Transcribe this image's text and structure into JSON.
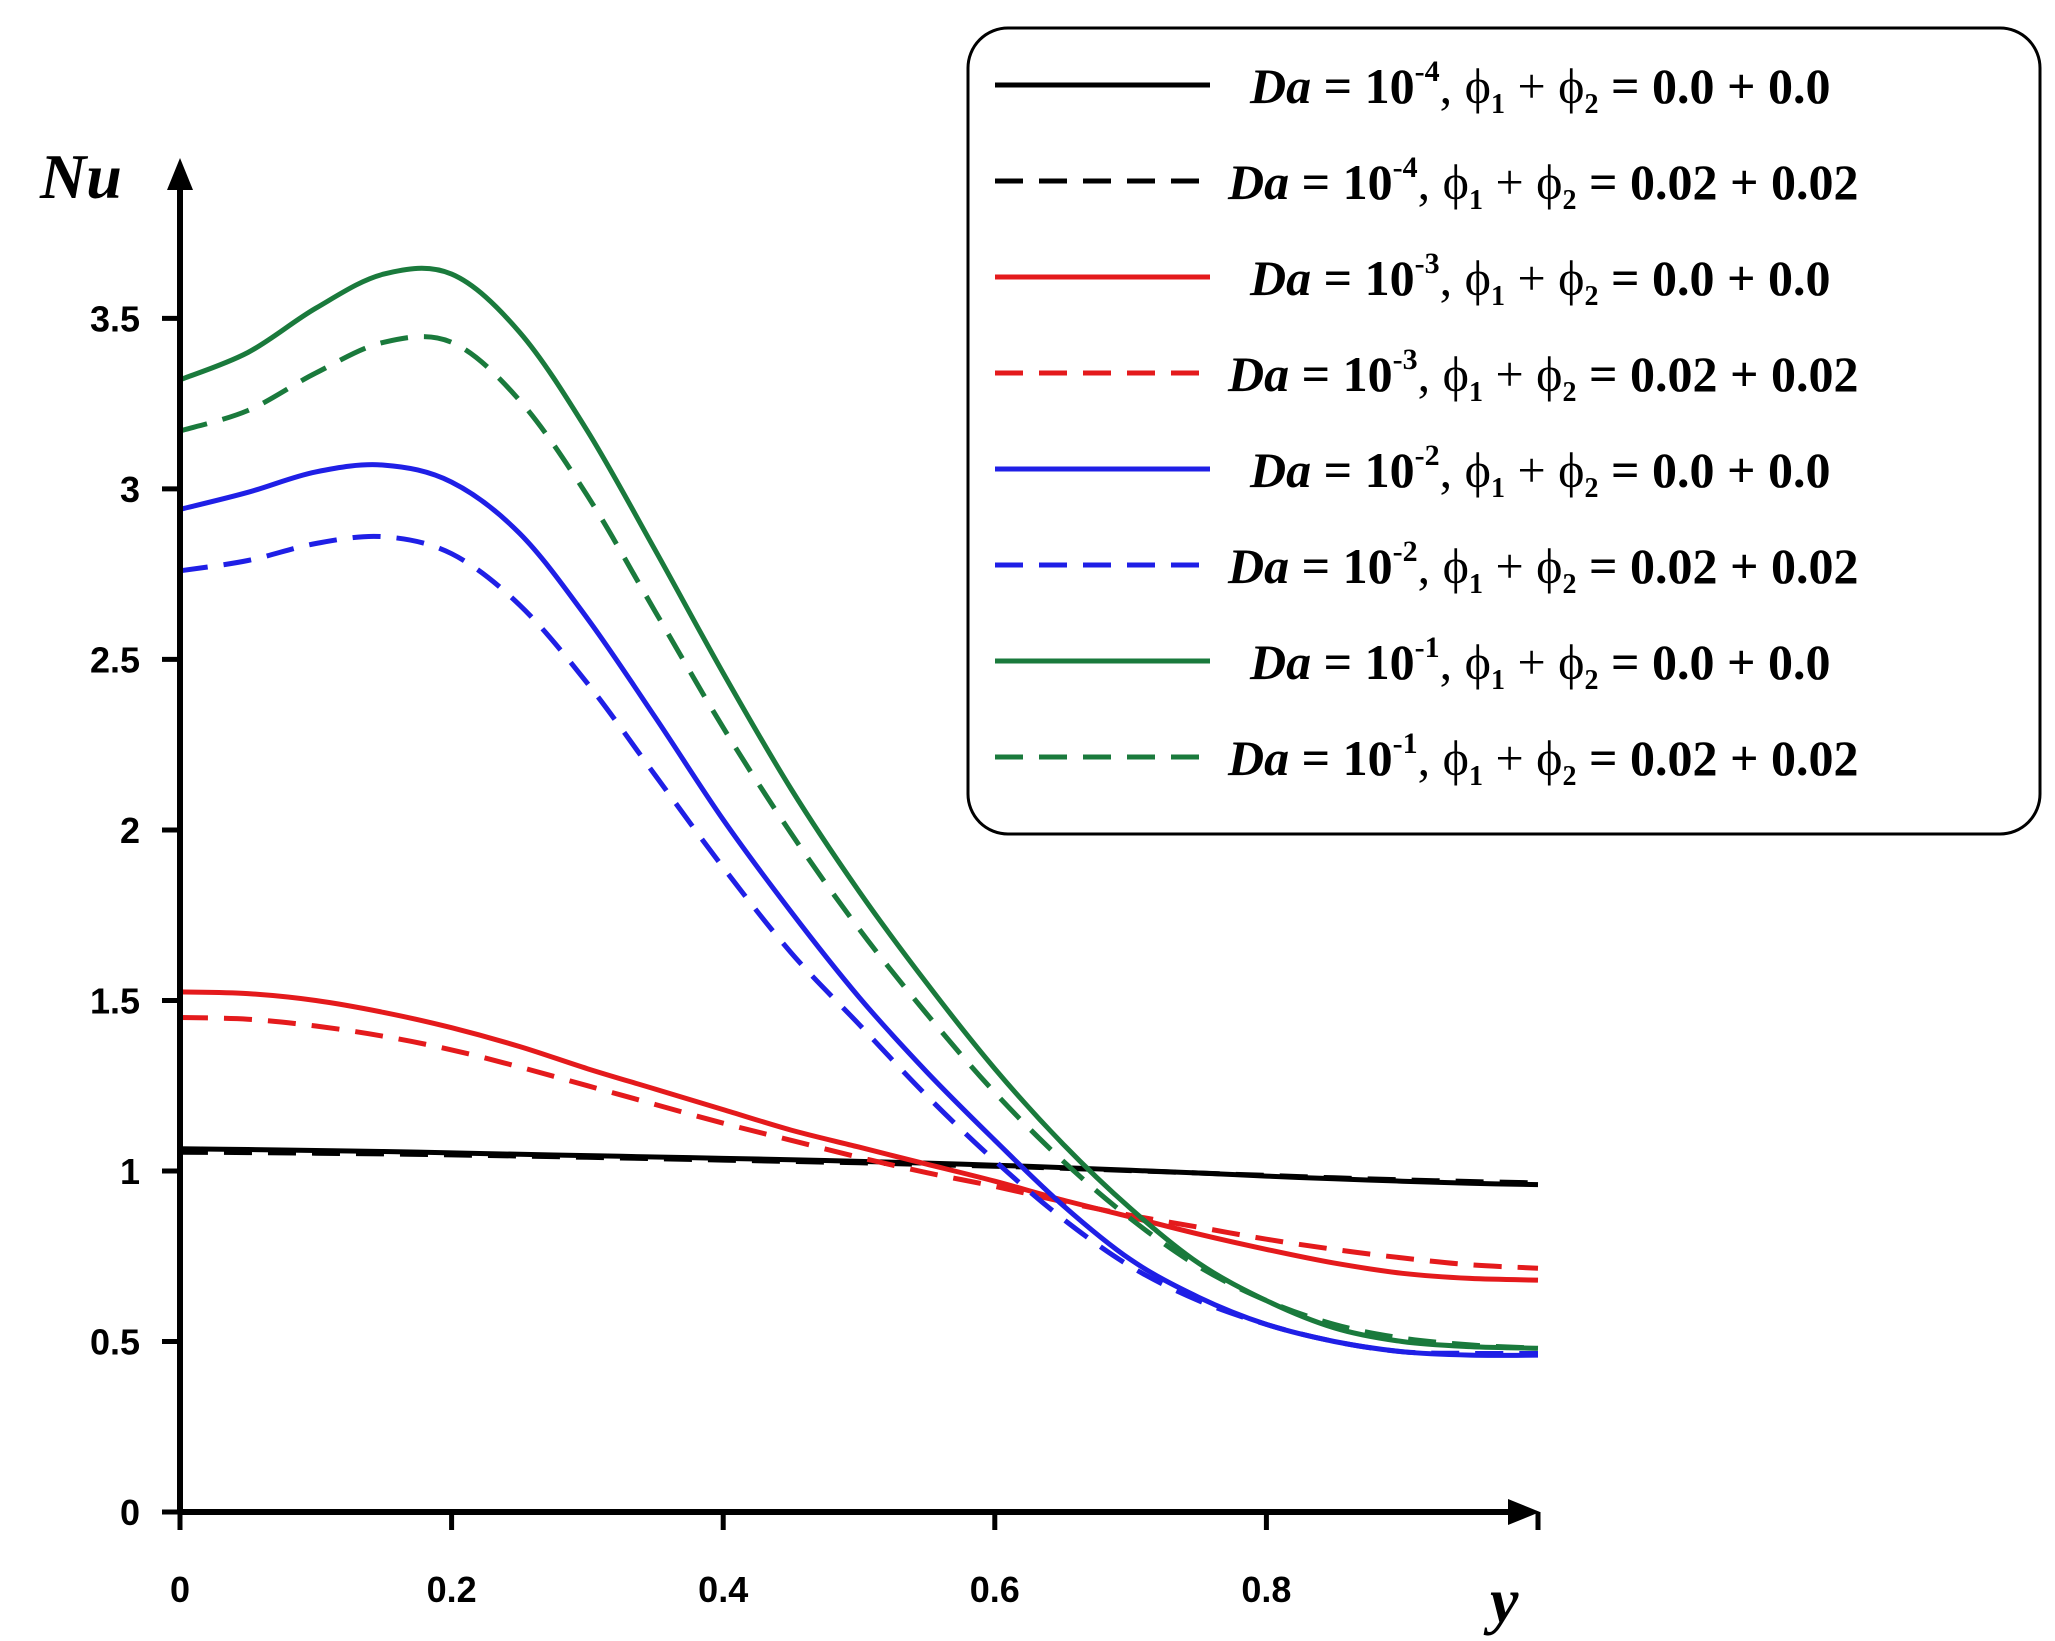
{
  "chart_data": {
    "type": "line",
    "title": "",
    "xlabel": "y",
    "ylabel": "Nu",
    "xlim": [
      0,
      1
    ],
    "ylim": [
      0,
      3.9
    ],
    "xticks": [
      0,
      0.2,
      0.4,
      0.6,
      0.8
    ],
    "xtick_labels": [
      "0",
      "0.2",
      "0.4",
      "0.6",
      "0.8"
    ],
    "yticks": [
      0,
      0.5,
      1,
      1.5,
      2,
      2.5,
      3,
      3.5
    ],
    "ytick_labels": [
      "0",
      "0.5",
      "1",
      "1.5",
      "2",
      "2.5",
      "3",
      "3.5"
    ],
    "grid": false,
    "legend_position": "top-right",
    "x": [
      0,
      0.05,
      0.1,
      0.15,
      0.2,
      0.25,
      0.3,
      0.35,
      0.4,
      0.45,
      0.5,
      0.55,
      0.6,
      0.65,
      0.7,
      0.75,
      0.8,
      0.85,
      0.9,
      0.95,
      1.0
    ],
    "series": [
      {
        "name": "Da = 10-4, φ1 + φ2 = 0.0 + 0.0",
        "da": "-4",
        "phi": "0.0 + 0.0",
        "color": "#000000",
        "dashed": false,
        "values": [
          1.065,
          1.063,
          1.06,
          1.057,
          1.053,
          1.049,
          1.045,
          1.041,
          1.037,
          1.033,
          1.028,
          1.023,
          1.017,
          1.01,
          1.002,
          0.994,
          0.985,
          0.977,
          0.97,
          0.964,
          0.96
        ]
      },
      {
        "name": "Da = 10-4, φ1 + φ2 = 0.02 + 0.02",
        "da": "-4",
        "phi": "0.02 + 0.02",
        "color": "#000000",
        "dashed": true,
        "values": [
          1.055,
          1.054,
          1.052,
          1.05,
          1.047,
          1.044,
          1.04,
          1.036,
          1.032,
          1.028,
          1.024,
          1.019,
          1.014,
          1.008,
          1.001,
          0.994,
          0.987,
          0.98,
          0.974,
          0.969,
          0.965
        ]
      },
      {
        "name": "Da = 10-3, φ1 + φ2 = 0.0 + 0.0",
        "da": "-3",
        "phi": "0.0 + 0.0",
        "color": "#e41a1c",
        "dashed": false,
        "values": [
          1.525,
          1.52,
          1.5,
          1.465,
          1.42,
          1.365,
          1.3,
          1.24,
          1.18,
          1.12,
          1.07,
          1.02,
          0.97,
          0.915,
          0.865,
          0.815,
          0.77,
          0.73,
          0.7,
          0.685,
          0.68
        ]
      },
      {
        "name": "Da = 10-3, φ1 + φ2 = 0.02 + 0.02",
        "da": "-3",
        "phi": "0.02 + 0.02",
        "color": "#e41a1c",
        "dashed": true,
        "values": [
          1.45,
          1.445,
          1.425,
          1.395,
          1.355,
          1.305,
          1.25,
          1.195,
          1.14,
          1.09,
          1.04,
          0.995,
          0.955,
          0.91,
          0.87,
          0.835,
          0.8,
          0.77,
          0.745,
          0.725,
          0.715
        ]
      },
      {
        "name": "Da = 10-2, φ1 + φ2 = 0.0 + 0.0",
        "da": "-2",
        "phi": "0.0 + 0.0",
        "color": "#1f1fe6",
        "dashed": false,
        "values": [
          2.94,
          2.99,
          3.05,
          3.07,
          3.02,
          2.87,
          2.62,
          2.33,
          2.03,
          1.76,
          1.51,
          1.29,
          1.09,
          0.9,
          0.74,
          0.63,
          0.55,
          0.5,
          0.47,
          0.46,
          0.46
        ]
      },
      {
        "name": "Da = 10-2, φ1 + φ2 = 0.02 + 0.02",
        "da": "-2",
        "phi": "0.02 + 0.02",
        "color": "#1f1fe6",
        "dashed": true,
        "values": [
          2.76,
          2.79,
          2.84,
          2.86,
          2.81,
          2.66,
          2.43,
          2.16,
          1.89,
          1.64,
          1.43,
          1.22,
          1.03,
          0.86,
          0.72,
          0.62,
          0.55,
          0.5,
          0.47,
          0.465,
          0.465
        ]
      },
      {
        "name": "Da = 10-1, φ1 + φ2 = 0.0 + 0.0",
        "da": "-1",
        "phi": "0.0 + 0.0",
        "color": "#1a7a3c",
        "dashed": false,
        "values": [
          3.32,
          3.4,
          3.53,
          3.63,
          3.63,
          3.46,
          3.17,
          2.82,
          2.46,
          2.12,
          1.82,
          1.55,
          1.3,
          1.08,
          0.89,
          0.73,
          0.62,
          0.54,
          0.5,
          0.485,
          0.48
        ]
      },
      {
        "name": "Da = 10-1, φ1 + φ2 = 0.02 + 0.02",
        "da": "-1",
        "phi": "0.02 + 0.02",
        "color": "#1a7a3c",
        "dashed": true,
        "values": [
          3.17,
          3.23,
          3.34,
          3.43,
          3.43,
          3.26,
          2.98,
          2.64,
          2.3,
          1.99,
          1.71,
          1.46,
          1.23,
          1.03,
          0.86,
          0.72,
          0.62,
          0.55,
          0.51,
          0.49,
          0.48
        ]
      }
    ],
    "legend": [
      {
        "da_prefix": "Da",
        "eq": " = 10",
        "da_exp": "-4",
        "mid": ", ϕ",
        "sub1": "1",
        "plus": " + ϕ",
        "sub2": "2",
        "rest": " = 0.0 + 0.0"
      },
      {
        "da_prefix": "Da",
        "eq": " = 10",
        "da_exp": "-4",
        "mid": ", ϕ",
        "sub1": "1",
        "plus": " + ϕ",
        "sub2": "2",
        "rest": " = 0.02 + 0.02"
      },
      {
        "da_prefix": "Da",
        "eq": " = 10",
        "da_exp": "-3",
        "mid": ", ϕ",
        "sub1": "1",
        "plus": " + ϕ",
        "sub2": "2",
        "rest": " = 0.0 + 0.0"
      },
      {
        "da_prefix": "Da",
        "eq": " = 10",
        "da_exp": "-3",
        "mid": ", ϕ",
        "sub1": "1",
        "plus": " + ϕ",
        "sub2": "2",
        "rest": " = 0.02 + 0.02"
      },
      {
        "da_prefix": "Da",
        "eq": " = 10",
        "da_exp": "-2",
        "mid": ", ϕ",
        "sub1": "1",
        "plus": " + ϕ",
        "sub2": "2",
        "rest": " = 0.0 + 0.0"
      },
      {
        "da_prefix": "Da",
        "eq": " = 10",
        "da_exp": "-2",
        "mid": ", ϕ",
        "sub1": "1",
        "plus": " + ϕ",
        "sub2": "2",
        "rest": " = 0.02 + 0.02"
      },
      {
        "da_prefix": "Da",
        "eq": " = 10",
        "da_exp": "-1",
        "mid": ", ϕ",
        "sub1": "1",
        "plus": " + ϕ",
        "sub2": "2",
        "rest": " = 0.0 + 0.0"
      },
      {
        "da_prefix": "Da",
        "eq": " = 10",
        "da_exp": "-1",
        "mid": ", ϕ",
        "sub1": "1",
        "plus": " + ϕ",
        "sub2": "2",
        "rest": " = 0.02 + 0.02"
      }
    ]
  }
}
